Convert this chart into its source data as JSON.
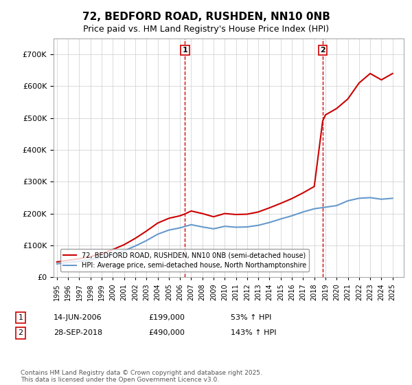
{
  "title": "72, BEDFORD ROAD, RUSHDEN, NN10 0NB",
  "subtitle": "Price paid vs. HM Land Registry's House Price Index (HPI)",
  "ylabel": "",
  "ylim": [
    0,
    750000
  ],
  "yticks": [
    0,
    100000,
    200000,
    300000,
    400000,
    500000,
    600000,
    700000
  ],
  "background_color": "#ffffff",
  "grid_color": "#cccccc",
  "sale1_date": 2006.45,
  "sale1_price": 199000,
  "sale1_label": "1",
  "sale2_date": 2018.75,
  "sale2_price": 490000,
  "sale2_label": "2",
  "red_line_color": "#cc0000",
  "blue_line_color": "#6699cc",
  "legend_red": "72, BEDFORD ROAD, RUSHDEN, NN10 0NB (semi-detached house)",
  "legend_blue": "HPI: Average price, semi-detached house, North Northamptonshire",
  "annotation1": "14-JUN-2006     £199,000     53% ↑ HPI",
  "annotation2": "28-SEP-2018     £490,000     143% ↑ HPI",
  "footnote": "Contains HM Land Registry data © Crown copyright and database right 2025.\nThis data is licensed under the Open Government Licence v3.0.",
  "xmin": 1995,
  "xmax": 2026,
  "hpi_years": [
    1995,
    1996,
    1997,
    1998,
    1999,
    2000,
    2001,
    2002,
    2003,
    2004,
    2005,
    2006,
    2007,
    2008,
    2009,
    2010,
    2011,
    2012,
    2013,
    2014,
    2015,
    2016,
    2017,
    2018,
    2019,
    2020,
    2021,
    2022,
    2023,
    2024,
    2025
  ],
  "hpi_values": [
    42000,
    46000,
    50000,
    55000,
    62000,
    72000,
    83000,
    98000,
    115000,
    135000,
    148000,
    155000,
    165000,
    158000,
    152000,
    160000,
    157000,
    158000,
    163000,
    172000,
    183000,
    193000,
    205000,
    215000,
    220000,
    225000,
    240000,
    248000,
    250000,
    245000,
    248000
  ],
  "property_years": [
    1995,
    1996,
    1997,
    1998,
    1999,
    2000,
    2001,
    2002,
    2003,
    2004,
    2005,
    2006,
    2006.45,
    2007,
    2008,
    2009,
    2010,
    2011,
    2012,
    2013,
    2014,
    2015,
    2016,
    2017,
    2018,
    2018.75,
    2019,
    2020,
    2021,
    2022,
    2023,
    2024,
    2025
  ],
  "property_values": [
    48000,
    53000,
    58000,
    65000,
    74000,
    87000,
    102000,
    122000,
    145000,
    170000,
    185000,
    193000,
    199000,
    208000,
    200000,
    190000,
    200000,
    197000,
    198000,
    205000,
    218000,
    232000,
    247000,
    265000,
    285000,
    490000,
    510000,
    530000,
    560000,
    610000,
    640000,
    620000,
    640000
  ]
}
